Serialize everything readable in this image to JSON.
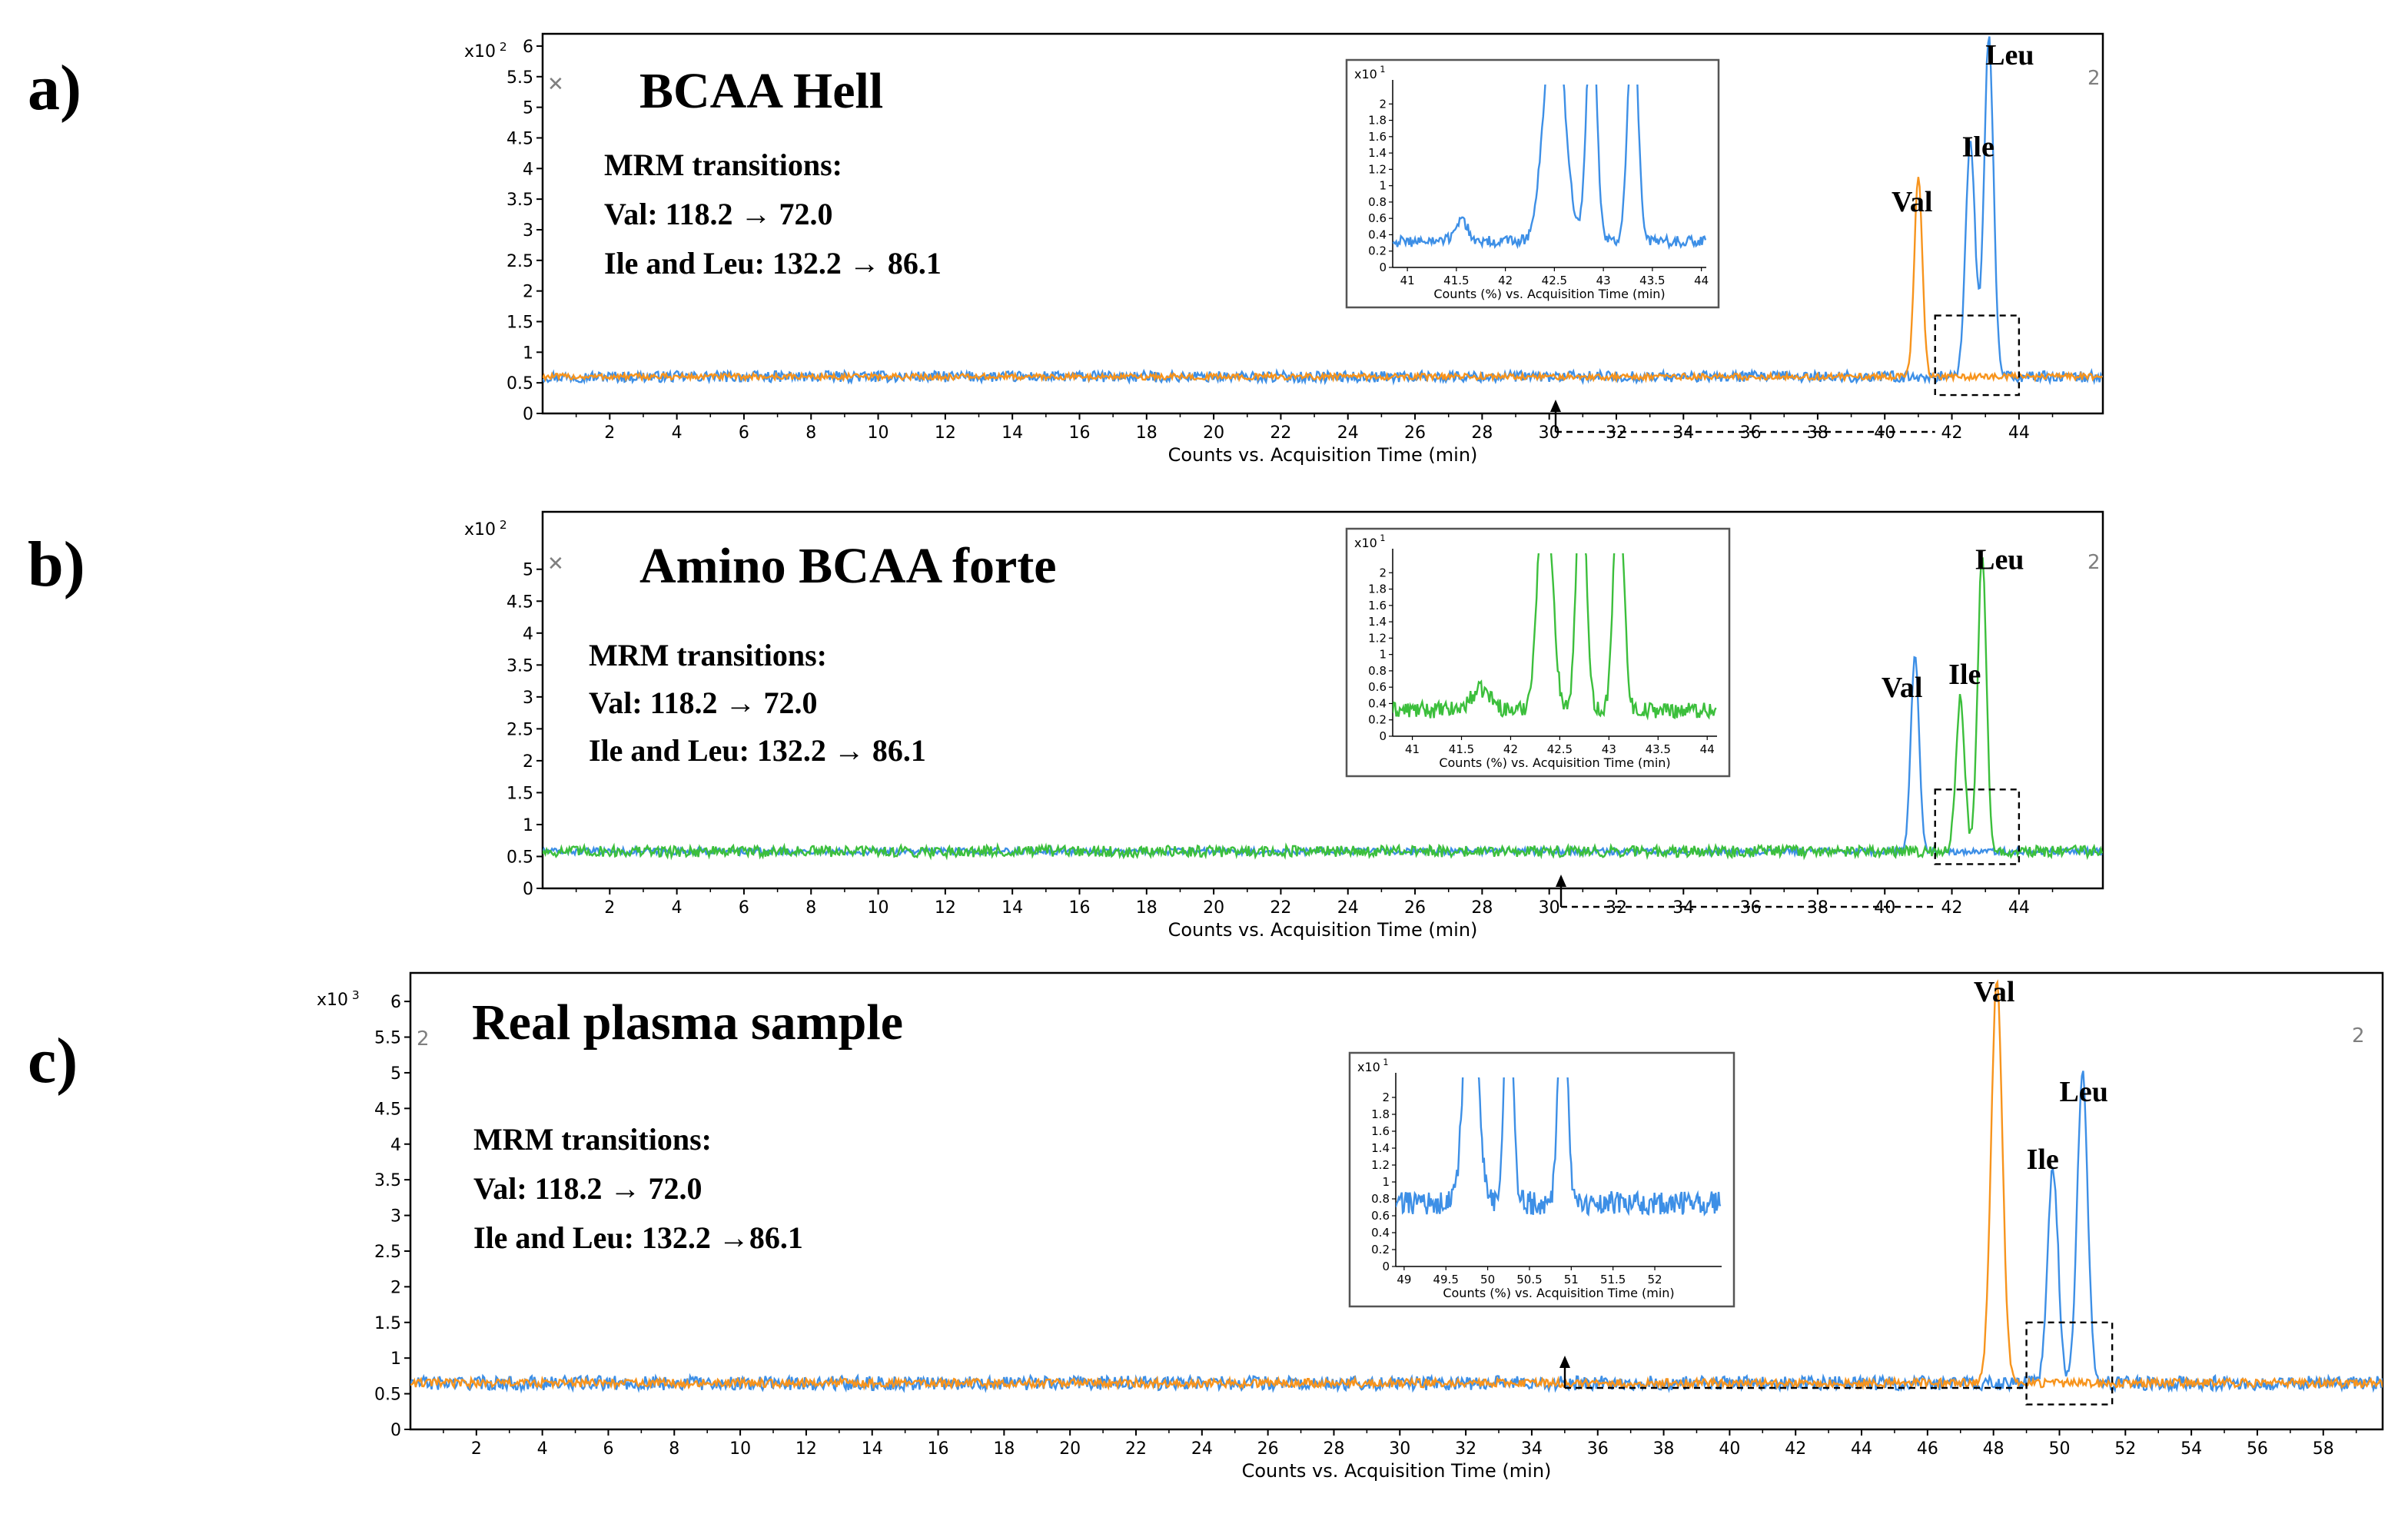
{
  "colors": {
    "blue": "#3d8fe6",
    "orange": "#f7941d",
    "green": "#3cbf3c",
    "frame": "#000000",
    "dashed": "#000000"
  },
  "chart_data": [
    {
      "type": "line",
      "panel_label": "a)",
      "title": "BCAA Hell",
      "mrm": {
        "heading": "MRM transitions:",
        "val": "Val: 118.2 → 72.0",
        "ile_leu": "Ile and Leu: 132.2 → 86.1"
      },
      "y_multiplier": "x10 2",
      "corner_marks": [
        "✕",
        "2"
      ],
      "xlabel": "Counts vs. Acquisition Time (min)",
      "xlim": [
        0,
        46.5
      ],
      "ylim": [
        0,
        6.2
      ],
      "xticks": [
        2,
        4,
        6,
        8,
        10,
        12,
        14,
        16,
        18,
        20,
        22,
        24,
        26,
        28,
        30,
        32,
        34,
        36,
        38,
        40,
        42,
        44
      ],
      "yticks": [
        "0",
        "0.5",
        "1",
        "1.5",
        "2",
        "2.5",
        "3",
        "3.5",
        "4",
        "4.5",
        "5",
        "5.5",
        "6"
      ],
      "baseline": 0.6,
      "series": [
        {
          "name": "Ile and Leu",
          "color": "blue",
          "noise": 0.09,
          "peaks": [
            [
              42.55,
              3.9,
              0.14
            ],
            [
              43.1,
              5.55,
              0.14
            ]
          ]
        },
        {
          "name": "Val",
          "color": "orange",
          "noise": 0.05,
          "peaks": [
            [
              41.0,
              3.25,
              0.12
            ]
          ]
        }
      ],
      "peak_labels": [
        {
          "text": "Val",
          "x": 40.2,
          "y": 3.3
        },
        {
          "text": "Ile",
          "x": 42.3,
          "y": 4.2
        },
        {
          "text": "Leu",
          "x": 43.0,
          "y": 5.7
        }
      ],
      "zoom_box": [
        41.5,
        44.0,
        0.3,
        1.6
      ],
      "inset": {
        "y_multiplier": "x10 1",
        "xlabel": "Counts (%) vs. Acquisition Time (min)",
        "xlim": [
          40.85,
          44.05
        ],
        "ylim": [
          0,
          2.2
        ],
        "xticks": [
          41,
          41.5,
          42,
          42.5,
          43,
          43.5,
          44
        ],
        "yticks": [
          "0",
          "0.2",
          "0.4",
          "0.6",
          "0.8",
          "1",
          "1.2",
          "1.4",
          "1.6",
          "1.8",
          "2"
        ],
        "series": [
          {
            "name": "Ile and Leu",
            "color": "blue",
            "baseline": 0.32,
            "noise": 0.07,
            "peaks": [
              [
                41.55,
                0.28,
                0.06
              ],
              [
                42.5,
                3.0,
                0.1
              ],
              [
                42.88,
                3.0,
                0.05
              ],
              [
                43.3,
                3.0,
                0.05
              ]
            ]
          }
        ]
      }
    },
    {
      "type": "line",
      "panel_label": "b)",
      "title": "Amino BCAA forte",
      "mrm": {
        "heading": "MRM transitions:",
        "val": "Val: 118.2 → 72.0",
        "ile_leu": "Ile and Leu: 132.2 → 86.1"
      },
      "y_multiplier": "x10 2",
      "corner_marks": [
        "✕",
        "2"
      ],
      "xlabel": "Counts vs. Acquisition Time (min)",
      "xlim": [
        0,
        46.5
      ],
      "ylim": [
        0,
        5.9
      ],
      "xticks": [
        2,
        4,
        6,
        8,
        10,
        12,
        14,
        16,
        18,
        20,
        22,
        24,
        26,
        28,
        30,
        32,
        34,
        36,
        38,
        40,
        42,
        44
      ],
      "yticks": [
        "0",
        "0.5",
        "1",
        "1.5",
        "2",
        "2.5",
        "3",
        "3.5",
        "4",
        "4.5",
        "5"
      ],
      "baseline": 0.58,
      "series": [
        {
          "name": "Val",
          "color": "blue",
          "noise": 0.05,
          "peaks": [
            [
              40.9,
              3.1,
              0.12
            ]
          ]
        },
        {
          "name": "Ile and Leu",
          "color": "green",
          "noise": 0.09,
          "peaks": [
            [
              42.25,
              2.4,
              0.13
            ],
            [
              42.9,
              4.65,
              0.13
            ]
          ]
        }
      ],
      "peak_labels": [
        {
          "text": "Val",
          "x": 39.9,
          "y": 3.0
        },
        {
          "text": "Ile",
          "x": 41.9,
          "y": 3.2
        },
        {
          "text": "Leu",
          "x": 42.7,
          "y": 5.0
        }
      ],
      "zoom_box": [
        41.5,
        44.0,
        0.38,
        1.55
      ],
      "inset": {
        "y_multiplier": "x10 1",
        "xlabel": "Counts (%) vs. Acquisition Time (min)",
        "xlim": [
          40.8,
          44.1
        ],
        "ylim": [
          0,
          2.2
        ],
        "xticks": [
          41,
          41.5,
          42,
          42.5,
          43,
          43.5,
          44
        ],
        "yticks": [
          "0",
          "0.2",
          "0.4",
          "0.6",
          "0.8",
          "1",
          "1.2",
          "1.4",
          "1.6",
          "1.8",
          "2"
        ],
        "series": [
          {
            "name": "Ile and Leu",
            "color": "green",
            "baseline": 0.32,
            "noise": 0.1,
            "peaks": [
              [
                41.7,
                0.25,
                0.1
              ],
              [
                42.35,
                3.0,
                0.07
              ],
              [
                42.72,
                3.0,
                0.05
              ],
              [
                43.1,
                3.0,
                0.05
              ]
            ]
          }
        ]
      }
    },
    {
      "type": "line",
      "panel_label": "c)",
      "title": "Real plasma sample",
      "mrm": {
        "heading": "MRM transitions:",
        "val": "Val: 118.2 → 72.0",
        "ile_leu": "Ile and Leu: 132.2 →86.1"
      },
      "y_multiplier": "x10 3",
      "corner_marks": [
        "2",
        "2"
      ],
      "xlabel": "Counts vs. Acquisition Time (min)",
      "xlim": [
        0,
        59.8
      ],
      "ylim": [
        0,
        6.4
      ],
      "xticks": [
        2,
        4,
        6,
        8,
        10,
        12,
        14,
        16,
        18,
        20,
        22,
        24,
        26,
        28,
        30,
        32,
        34,
        36,
        38,
        40,
        42,
        44,
        46,
        48,
        50,
        52,
        54,
        56,
        58
      ],
      "yticks": [
        "0",
        "0.5",
        "1",
        "1.5",
        "2",
        "2.5",
        "3",
        "3.5",
        "4",
        "4.5",
        "5",
        "5.5",
        "6"
      ],
      "baseline": 0.65,
      "series": [
        {
          "name": "Ile and Leu",
          "color": "blue",
          "noise": 0.1,
          "peaks": [
            [
              49.8,
              3.05,
              0.16
            ],
            [
              50.7,
              4.35,
              0.16
            ]
          ]
        },
        {
          "name": "Val",
          "color": "orange",
          "noise": 0.06,
          "peaks": [
            [
              48.1,
              5.65,
              0.17
            ]
          ]
        }
      ],
      "peak_labels": [
        {
          "text": "Val",
          "x": 47.4,
          "y": 6.0
        },
        {
          "text": "Ile",
          "x": 49.0,
          "y": 3.65
        },
        {
          "text": "Leu",
          "x": 50.0,
          "y": 4.6
        }
      ],
      "zoom_box": [
        49.0,
        51.6,
        0.35,
        1.5
      ],
      "inset": {
        "y_multiplier": "x10 1",
        "xlabel": "Counts (%) vs. Acquisition Time (min)",
        "xlim": [
          48.9,
          52.8
        ],
        "ylim": [
          0,
          2.2
        ],
        "xticks": [
          49,
          49.5,
          50,
          50.5,
          51,
          51.5,
          52
        ],
        "yticks": [
          "0",
          "0.2",
          "0.4",
          "0.6",
          "0.8",
          "1",
          "1.2",
          "1.4",
          "1.6",
          "1.8",
          "2"
        ],
        "series": [
          {
            "name": "Ile and Leu",
            "color": "blue",
            "baseline": 0.75,
            "noise": 0.14,
            "peaks": [
              [
                49.8,
                3.0,
                0.08
              ],
              [
                50.25,
                3.0,
                0.05
              ],
              [
                50.9,
                3.0,
                0.05
              ]
            ]
          }
        ]
      }
    }
  ]
}
